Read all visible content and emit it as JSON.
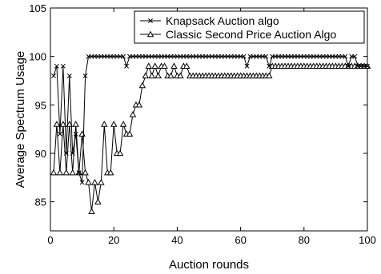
{
  "chart_data": {
    "type": "line",
    "xlabel": "Auction rounds",
    "ylabel": "Average Spectrum Usage",
    "xlim": [
      0,
      100
    ],
    "ylim": [
      82,
      105
    ],
    "xticks": [
      0,
      20,
      40,
      60,
      80,
      100
    ],
    "yticks": [
      85,
      90,
      95,
      100,
      105
    ],
    "legend_position": "top-right",
    "grid": false,
    "series": [
      {
        "name": "Knapsack Auction algo",
        "marker": "x",
        "color": "#000000",
        "x": [
          1,
          2,
          3,
          4,
          5,
          6,
          7,
          8,
          9,
          10,
          11,
          12,
          13,
          14,
          15,
          16,
          17,
          18,
          19,
          20,
          21,
          22,
          23,
          24,
          25,
          26,
          27,
          28,
          29,
          30,
          31,
          32,
          33,
          34,
          35,
          36,
          37,
          38,
          39,
          40,
          41,
          42,
          43,
          44,
          45,
          46,
          47,
          48,
          49,
          50,
          51,
          52,
          53,
          54,
          55,
          56,
          57,
          58,
          59,
          60,
          61,
          62,
          63,
          64,
          65,
          66,
          67,
          68,
          69,
          70,
          71,
          72,
          73,
          74,
          75,
          76,
          77,
          78,
          79,
          80,
          81,
          82,
          83,
          84,
          85,
          86,
          87,
          88,
          89,
          90,
          91,
          92,
          93,
          94,
          95,
          96,
          97,
          98,
          99,
          100
        ],
        "y": [
          98,
          99,
          92,
          99,
          90,
          98,
          90,
          92,
          88,
          87,
          98,
          100,
          100,
          100,
          100,
          100,
          100,
          100,
          100,
          100,
          100,
          100,
          100,
          99,
          100,
          100,
          100,
          100,
          100,
          100,
          100,
          100,
          100,
          100,
          100,
          100,
          100,
          100,
          100,
          100,
          100,
          100,
          100,
          100,
          100,
          100,
          100,
          100,
          100,
          100,
          100,
          100,
          100,
          100,
          100,
          100,
          100,
          100,
          100,
          100,
          100,
          99,
          100,
          100,
          100,
          100,
          100,
          100,
          99,
          100,
          100,
          100,
          100,
          100,
          100,
          100,
          100,
          100,
          100,
          100,
          100,
          100,
          100,
          100,
          100,
          100,
          100,
          100,
          100,
          100,
          100,
          100,
          100,
          99,
          100,
          100,
          99,
          99,
          99,
          99
        ]
      },
      {
        "name": "Classic Second Price Auction Algo",
        "marker": "^",
        "color": "#000000",
        "x": [
          1,
          2,
          3,
          4,
          5,
          6,
          7,
          8,
          9,
          10,
          11,
          12,
          13,
          14,
          15,
          16,
          17,
          18,
          19,
          20,
          21,
          22,
          23,
          24,
          25,
          26,
          27,
          28,
          29,
          30,
          31,
          32,
          33,
          34,
          35,
          36,
          37,
          38,
          39,
          40,
          41,
          42,
          43,
          44,
          45,
          46,
          47,
          48,
          49,
          50,
          51,
          52,
          53,
          54,
          55,
          56,
          57,
          58,
          59,
          60,
          61,
          62,
          63,
          64,
          65,
          66,
          67,
          68,
          69,
          70,
          71,
          72,
          73,
          74,
          75,
          76,
          77,
          78,
          79,
          80,
          81,
          82,
          83,
          84,
          85,
          86,
          87,
          88,
          89,
          90,
          91,
          92,
          93,
          94,
          95,
          96,
          97,
          98,
          99,
          100
        ],
        "y": [
          88,
          93,
          88,
          93,
          88,
          93,
          88,
          93,
          88,
          92,
          88,
          87,
          84,
          87,
          85,
          87,
          93,
          88,
          88,
          93,
          90,
          90,
          93,
          92,
          92,
          94,
          95,
          95,
          97,
          98,
          99,
          98,
          99,
          98,
          99,
          99,
          98,
          98,
          99,
          98,
          98,
          99,
          99,
          98,
          98,
          98,
          98,
          98,
          98,
          98,
          98,
          98,
          98,
          98,
          98,
          98,
          98,
          98,
          98,
          98,
          98,
          98,
          98,
          98,
          98,
          98,
          98,
          98,
          98,
          99,
          99,
          99,
          99,
          99,
          99,
          99,
          99,
          99,
          99,
          99,
          99,
          99,
          99,
          99,
          99,
          99,
          99,
          99,
          99,
          99,
          99,
          99,
          99,
          99,
          99,
          99,
          99,
          99,
          99,
          99
        ]
      }
    ]
  }
}
